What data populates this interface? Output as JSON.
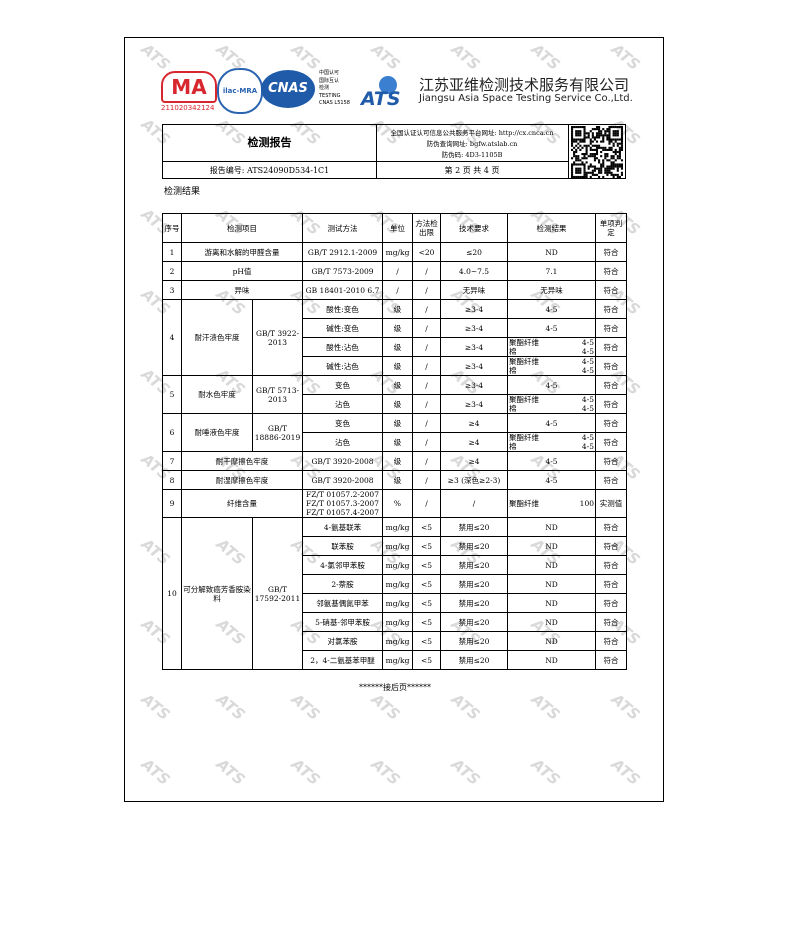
{
  "header": {
    "ma_logo": "MA",
    "ma_number": "211020342124",
    "ilac_logo": "ilac-MRA",
    "cnas_logo": "CNAS",
    "cnas_lines": [
      "中国认可",
      "国际互认",
      "检测",
      "TESTING",
      "CNAS L5158"
    ],
    "ats_logo": "ATS",
    "company_cn": "江苏亚维检测技术服务有限公司",
    "company_en": "Jiangsu Asia Space Testing Service Co.,Ltd."
  },
  "info": {
    "title": "检测报告",
    "platform": "全国认证认可信息公共服务平台网址: http://cx.cnca.cn",
    "query": "防伪查询网址: bgfw.atslab.cn",
    "code": "防伪码: 4D3-1105B",
    "report_no": "报告编号: ATS24090D534-1C1",
    "page": "第 2 页 共 4 页"
  },
  "section_title": "检测结果",
  "table": {
    "columns": [
      "序号",
      "检测项目",
      "测试方法",
      "单位",
      "方法检出限",
      "技术要求",
      "检测结果",
      "单项判定"
    ],
    "groups": [
      {
        "no": "1",
        "item": "游离和水解的甲醛含量",
        "method_lines": [
          "GB/T 2912.1-2009"
        ],
        "rows": [
          {
            "unit": "mg/kg",
            "limit": "<20",
            "requirement": "≤20",
            "result": "ND",
            "judgment": "符合"
          }
        ]
      },
      {
        "no": "2",
        "item": "pH值",
        "method_lines": [
          "GB/T 7573-2009"
        ],
        "rows": [
          {
            "unit": "/",
            "limit": "/",
            "requirement": "4.0~7.5",
            "result": "7.1",
            "judgment": "符合"
          }
        ]
      },
      {
        "no": "3",
        "item": "异味",
        "method_lines": [
          "GB 18401-2010 6.7"
        ],
        "rows": [
          {
            "unit": "/",
            "limit": "/",
            "requirement": "无异味",
            "result": "无异味",
            "judgment": "符合"
          }
        ]
      },
      {
        "no": "4",
        "item": "耐汗渍色牢度",
        "method_lines": [
          "GB/T 3922-2013"
        ],
        "rows": [
          {
            "sub_item": "酸性:变色",
            "unit": "级",
            "limit": "/",
            "requirement": "≥3-4",
            "result": "4-5",
            "judgment": "符合"
          },
          {
            "sub_item": "碱性:变色",
            "unit": "级",
            "limit": "/",
            "requirement": "≥3-4",
            "result": "4-5",
            "judgment": "符合"
          },
          {
            "sub_item": "酸性:沾色",
            "unit": "级",
            "limit": "/",
            "requirement": "≥3-4",
            "result_lines": [
              [
                "聚酯纤维",
                "4-5"
              ],
              [
                "棉",
                "4-5"
              ]
            ],
            "judgment": "符合"
          },
          {
            "sub_item": "碱性:沾色",
            "unit": "级",
            "limit": "/",
            "requirement": "≥3-4",
            "result_lines": [
              [
                "聚酯纤维",
                "4-5"
              ],
              [
                "棉",
                "4-5"
              ]
            ],
            "judgment": "符合"
          }
        ]
      },
      {
        "no": "5",
        "item": "耐水色牢度",
        "method_lines": [
          "GB/T 5713-2013"
        ],
        "rows": [
          {
            "sub_item": "变色",
            "unit": "级",
            "limit": "/",
            "requirement": "≥3-4",
            "result": "4-5",
            "judgment": "符合"
          },
          {
            "sub_item": "沾色",
            "unit": "级",
            "limit": "/",
            "requirement": "≥3-4",
            "result_lines": [
              [
                "聚酯纤维",
                "4-5"
              ],
              [
                "棉",
                "4-5"
              ]
            ],
            "judgment": "符合"
          }
        ]
      },
      {
        "no": "6",
        "item": "耐唾液色牢度",
        "method_lines": [
          "GB/T 18886-2019"
        ],
        "rows": [
          {
            "sub_item": "变色",
            "unit": "级",
            "limit": "/",
            "requirement": "≥4",
            "result": "4-5",
            "judgment": "符合"
          },
          {
            "sub_item": "沾色",
            "unit": "级",
            "limit": "/",
            "requirement": "≥4",
            "result_lines": [
              [
                "聚酯纤维",
                "4-5"
              ],
              [
                "棉",
                "4-5"
              ]
            ],
            "judgment": "符合"
          }
        ]
      },
      {
        "no": "7",
        "item": "耐干摩擦色牢度",
        "method_lines": [
          "GB/T 3920-2008"
        ],
        "rows": [
          {
            "unit": "级",
            "limit": "/",
            "requirement": "≥4",
            "result": "4-5",
            "judgment": "符合"
          }
        ]
      },
      {
        "no": "8",
        "item": "耐湿摩擦色牢度",
        "method_lines": [
          "GB/T 3920-2008"
        ],
        "rows": [
          {
            "unit": "级",
            "limit": "/",
            "requirement": "≥3 (深色≥2-3)",
            "result": "4-5",
            "judgment": "符合"
          }
        ]
      },
      {
        "no": "9",
        "item": "纤维含量",
        "method_lines": [
          "FZ/T 01057.2-2007",
          "FZ/T 01057.3-2007",
          "FZ/T 01057.4-2007"
        ],
        "rows": [
          {
            "unit": "%",
            "limit": "/",
            "requirement": "/",
            "result_lines": [
              [
                "聚酯纤维",
                "100"
              ]
            ],
            "judgment": "实测值"
          }
        ]
      },
      {
        "no": "10",
        "item": "可分解致癌芳香胺染料",
        "method_lines": [
          "GB/T 17592-2011"
        ],
        "rows": [
          {
            "sub_item": "4-氨基联苯",
            "unit": "mg/kg",
            "limit": "<5",
            "requirement": "禁用≤20",
            "result": "ND",
            "judgment": "符合"
          },
          {
            "sub_item": "联苯胺",
            "unit": "mg/kg",
            "limit": "<5",
            "requirement": "禁用≤20",
            "result": "ND",
            "judgment": "符合"
          },
          {
            "sub_item": "4-氯邻甲苯胺",
            "unit": "mg/kg",
            "limit": "<5",
            "requirement": "禁用≤20",
            "result": "ND",
            "judgment": "符合"
          },
          {
            "sub_item": "2-萘胺",
            "unit": "mg/kg",
            "limit": "<5",
            "requirement": "禁用≤20",
            "result": "ND",
            "judgment": "符合"
          },
          {
            "sub_item": "邻氨基偶氮甲苯",
            "unit": "mg/kg",
            "limit": "<5",
            "requirement": "禁用≤20",
            "result": "ND",
            "judgment": "符合"
          },
          {
            "sub_item": "5-硝基-邻甲苯胺",
            "unit": "mg/kg",
            "limit": "<5",
            "requirement": "禁用≤20",
            "result": "ND",
            "judgment": "符合"
          },
          {
            "sub_item": "对氯苯胺",
            "unit": "mg/kg",
            "limit": "<5",
            "requirement": "禁用≤20",
            "result": "ND",
            "judgment": "符合"
          },
          {
            "sub_item": "2，4-二氨基苯甲醚",
            "unit": "mg/kg",
            "limit": "<5",
            "requirement": "禁用≤20",
            "result": "ND",
            "judgment": "符合"
          }
        ]
      }
    ]
  },
  "footer": "******接后页******",
  "watermark": "ATS"
}
